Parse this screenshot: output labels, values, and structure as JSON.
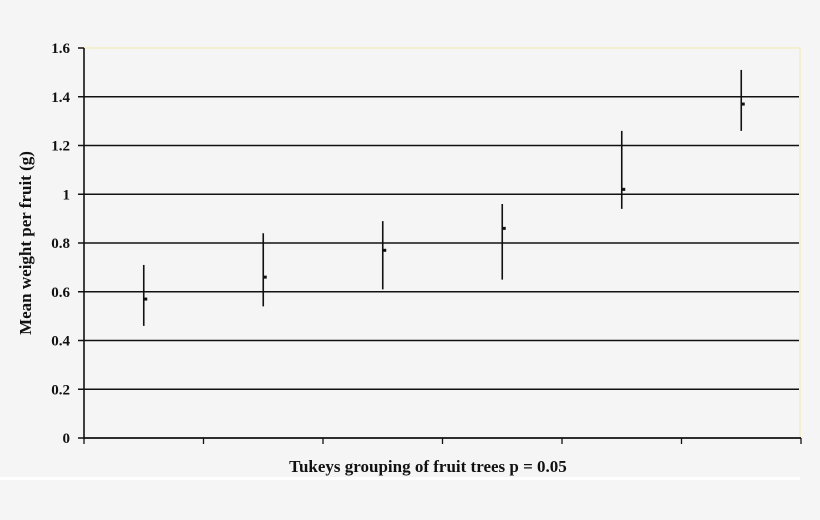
{
  "chart_data": {
    "type": "scatter",
    "subtype": "mean_with_error_bars",
    "title": "",
    "xlabel": "Tukeys grouping of fruit trees p = 0.05",
    "ylabel": "Mean weight per fruit (g)",
    "ylim": [
      0,
      1.6
    ],
    "yticks": [
      "0",
      "0.2",
      "0.4",
      "0.6",
      "0.8",
      "1",
      "1.2",
      "1.4",
      "1.6"
    ],
    "x_tick_count": 7,
    "grid": "horizontal",
    "points": [
      {
        "index": 1,
        "mean": 0.57,
        "upper": 0.71,
        "lower": 0.46
      },
      {
        "index": 2,
        "mean": 0.66,
        "upper": 0.84,
        "lower": 0.54
      },
      {
        "index": 3,
        "mean": 0.77,
        "upper": 0.89,
        "lower": 0.61
      },
      {
        "index": 4,
        "mean": 0.86,
        "upper": 0.96,
        "lower": 0.65
      },
      {
        "index": 5,
        "mean": 1.02,
        "upper": 1.26,
        "lower": 0.94
      },
      {
        "index": 6,
        "mean": 1.37,
        "upper": 1.51,
        "lower": 1.26
      }
    ]
  },
  "colors": {
    "background": "#f5f5f5",
    "ink": "#111111",
    "top_border": "#f3f0d0"
  }
}
